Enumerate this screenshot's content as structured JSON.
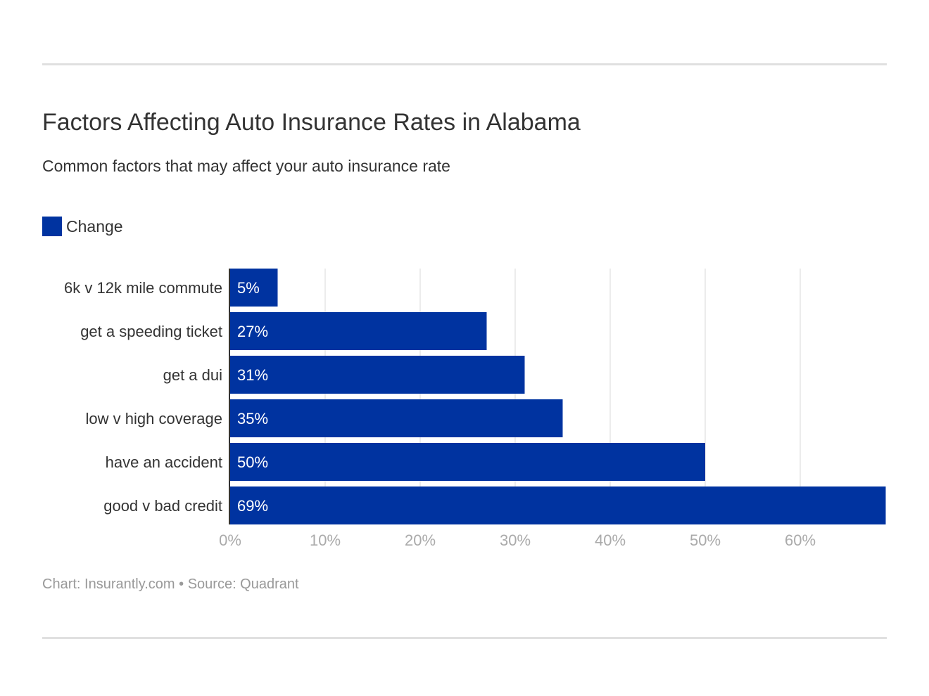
{
  "title": "Factors Affecting Auto Insurance Rates in Alabama",
  "subtitle": "Common factors that may affect your auto insurance rate",
  "credit": "Chart: Insurantly.com • Source: Quadrant",
  "colors": {
    "bar": "#0033a0",
    "grid": "#e5e5e5",
    "axis": "#333333",
    "tick": "#aaaaaa"
  },
  "chart_data": {
    "type": "bar",
    "orientation": "horizontal",
    "title": "Factors Affecting Auto Insurance Rates in Alabama",
    "subtitle": "Common factors that may affect your auto insurance rate",
    "categories": [
      "6k v 12k mile commute",
      "get a speeding ticket",
      "get a dui",
      "low v high coverage",
      "have an accident",
      "good v bad credit"
    ],
    "series": [
      {
        "name": "Change",
        "values": [
          5,
          27,
          31,
          35,
          50,
          69
        ]
      }
    ],
    "data_labels": [
      "5%",
      "27%",
      "31%",
      "35%",
      "50%",
      "69%"
    ],
    "xticks": [
      "0%",
      "10%",
      "20%",
      "30%",
      "40%",
      "50%",
      "60%"
    ],
    "xlim": [
      0,
      69
    ],
    "grid": true,
    "legend": "top-left"
  }
}
